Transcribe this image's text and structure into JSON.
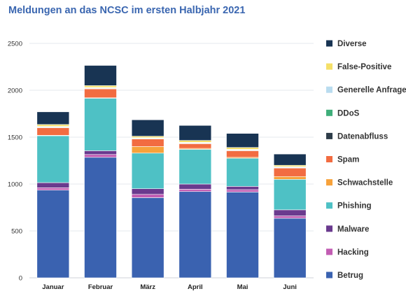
{
  "chart_data": {
    "type": "bar",
    "stacked": true,
    "title": "Meldungen an das NCSC im ersten Halbjahr 2021",
    "xlabel": "",
    "ylabel": "",
    "ylim": [
      0,
      2500
    ],
    "yticks": [
      0,
      500,
      1000,
      1500,
      2000,
      2500
    ],
    "grid": true,
    "legend_position": "right",
    "categories": [
      "Januar",
      "Februar",
      "März",
      "April",
      "Mai",
      "Juni"
    ],
    "series": [
      {
        "name": "Betrug",
        "color": "#3a62b0",
        "values": [
          935,
          1285,
          855,
          920,
          915,
          635
        ]
      },
      {
        "name": "Hacking",
        "color": "#c25db3",
        "values": [
          25,
          30,
          35,
          25,
          25,
          25
        ]
      },
      {
        "name": "Malware",
        "color": "#6a3a8e",
        "values": [
          55,
          40,
          60,
          55,
          35,
          65
        ]
      },
      {
        "name": "Phishing",
        "color": "#4ec1c5",
        "values": [
          500,
          560,
          380,
          370,
          300,
          325
        ]
      },
      {
        "name": "Schwachstelle",
        "color": "#f7a23b",
        "values": [
          5,
          5,
          70,
          10,
          10,
          30
        ]
      },
      {
        "name": "Spam",
        "color": "#f26c41",
        "values": [
          80,
          95,
          80,
          50,
          70,
          90
        ]
      },
      {
        "name": "Datenabfluss",
        "color": "#2e3d49",
        "values": [
          5,
          5,
          5,
          5,
          5,
          5
        ]
      },
      {
        "name": "DDoS",
        "color": "#3fae7a",
        "values": [
          5,
          5,
          5,
          5,
          5,
          5
        ]
      },
      {
        "name": "Generelle Anfrage",
        "color": "#b9dcef",
        "values": [
          5,
          5,
          5,
          5,
          5,
          5
        ]
      },
      {
        "name": "False-Positive",
        "color": "#f5e068",
        "values": [
          20,
          20,
          15,
          20,
          20,
          15
        ]
      },
      {
        "name": "Diverse",
        "color": "#183453",
        "values": [
          135,
          215,
          175,
          160,
          150,
          120
        ]
      }
    ]
  }
}
